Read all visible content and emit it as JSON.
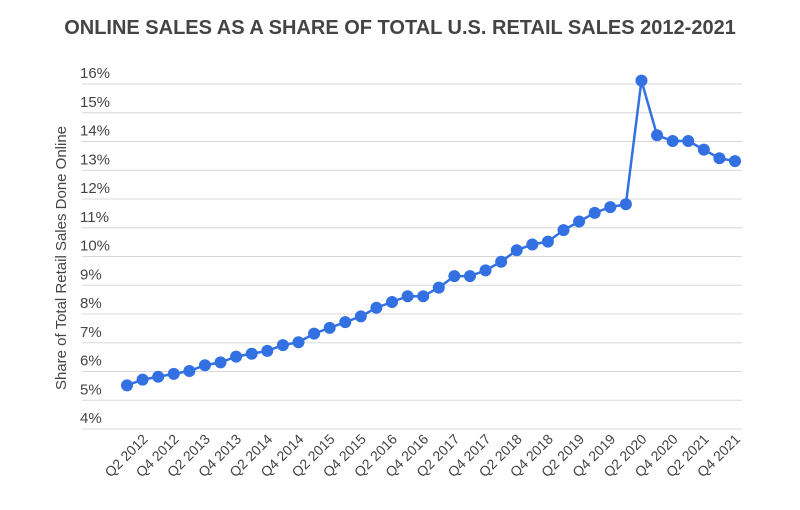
{
  "chart_data": {
    "type": "line",
    "title": "ONLINE SALES AS A SHARE OF TOTAL U.S. RETAIL SALES 2012-2021",
    "xlabel": "",
    "ylabel": "Share of Total Retail Sales Done Online",
    "ylim": [
      4,
      16
    ],
    "yticks": [
      "4%",
      "5%",
      "6%",
      "7%",
      "8%",
      "9%",
      "10%",
      "11%",
      "12%",
      "13%",
      "14%",
      "15%",
      "16%"
    ],
    "grid": true,
    "color": "#3371e3",
    "x": [
      "Q1 2012",
      "Q2 2012",
      "Q3 2012",
      "Q4 2012",
      "Q1 2013",
      "Q2 2013",
      "Q3 2013",
      "Q4 2013",
      "Q1 2014",
      "Q2 2014",
      "Q3 2014",
      "Q4 2014",
      "Q1 2015",
      "Q2 2015",
      "Q3 2015",
      "Q4 2015",
      "Q1 2016",
      "Q2 2016",
      "Q3 2016",
      "Q4 2016",
      "Q1 2017",
      "Q2 2017",
      "Q3 2017",
      "Q4 2017",
      "Q1 2018",
      "Q2 2018",
      "Q3 2018",
      "Q4 2018",
      "Q1 2019",
      "Q2 2019",
      "Q3 2019",
      "Q4 2019",
      "Q1 2020",
      "Q2 2020",
      "Q3 2020",
      "Q4 2020",
      "Q1 2021",
      "Q2 2021",
      "Q3 2021",
      "Q4 2021"
    ],
    "xtick_labels": [
      "Q2 2012",
      "Q4 2012",
      "Q2 2013",
      "Q4 2013",
      "Q2 2014",
      "Q4 2014",
      "Q2 2015",
      "Q4 2015",
      "Q2 2016",
      "Q4 2016",
      "Q2 2017",
      "Q4 2017",
      "Q2 2018",
      "Q4 2018",
      "Q2 2019",
      "Q4 2019",
      "Q2 2020",
      "Q4 2020",
      "Q2 2021",
      "Q4 2021"
    ],
    "values": [
      5.1,
      5.3,
      5.4,
      5.5,
      5.6,
      5.8,
      5.9,
      6.1,
      6.2,
      6.3,
      6.5,
      6.6,
      6.9,
      7.1,
      7.3,
      7.5,
      7.8,
      8.0,
      8.2,
      8.2,
      8.5,
      8.9,
      8.9,
      9.1,
      9.4,
      9.8,
      10.0,
      10.1,
      10.5,
      10.8,
      11.1,
      11.3,
      11.4,
      15.7,
      13.8,
      13.6,
      13.6,
      13.3,
      13.0,
      12.9
    ]
  }
}
